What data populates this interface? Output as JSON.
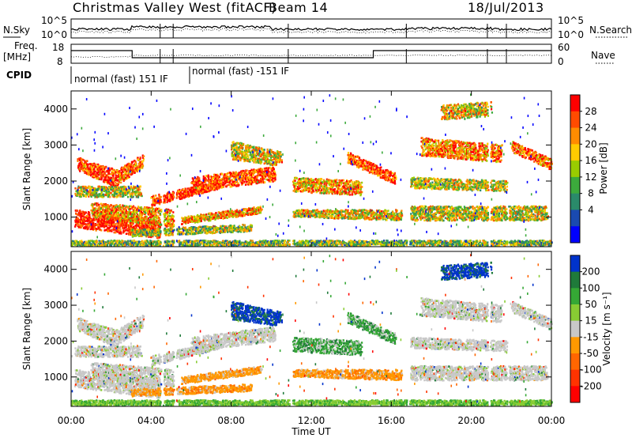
{
  "header": {
    "station": "Christmas Valley West (fitACF)",
    "beam": "Beam 14",
    "date": "18/Jul/2013"
  },
  "top_panels": {
    "nsky_label": "N.Sky",
    "nsky_ticks": [
      "10^5",
      "10^0"
    ],
    "nsearch_label": "N.Search",
    "nsearch_ticks": [
      "10^5",
      "10^0"
    ],
    "freq_label": "Freq.",
    "freq_units": "[MHz]",
    "freq_ticks": [
      "18",
      "8"
    ],
    "nave_label": "Nave",
    "nave_ticks": [
      "60",
      "0"
    ],
    "cpid_label": "CPID",
    "cpid_modes": [
      "normal (fast) 151 IF",
      "normal (fast) -151 IF"
    ]
  },
  "chart_data": [
    {
      "type": "heatmap",
      "title": "",
      "xlabel": "",
      "ylabel": "Slant Range [km]",
      "x_ticks": [
        "00:00",
        "04:00",
        "08:00",
        "12:00",
        "16:00",
        "20:00",
        "00:00"
      ],
      "xlim": [
        0,
        24
      ],
      "y_ticks": [
        1000,
        2000,
        3000,
        4000
      ],
      "ylim": [
        180,
        4500
      ],
      "colorbar": {
        "label": "Power [dB]",
        "ticks": [
          "28",
          "24",
          "20",
          "16",
          "12",
          "8",
          "4"
        ],
        "colors": [
          "#ff0000",
          "#ff4b00",
          "#ff8c00",
          "#ffcc00",
          "#99cc00",
          "#3caa3c",
          "#2a8a6a",
          "#1a4ab0",
          "#0000ff"
        ]
      }
    },
    {
      "type": "heatmap",
      "title": "",
      "xlabel": "Time UT",
      "ylabel": "Slant Range [km]",
      "x_ticks": [
        "00:00",
        "04:00",
        "08:00",
        "12:00",
        "16:00",
        "20:00",
        "00:00"
      ],
      "xlim": [
        0,
        24
      ],
      "y_ticks": [
        1000,
        2000,
        3000,
        4000
      ],
      "ylim": [
        180,
        4500
      ],
      "colorbar": {
        "label": "Velocity [m s⁻¹]",
        "ticks": [
          "200",
          "100",
          "50",
          "15",
          "-15",
          "-50",
          "-100",
          "-200"
        ],
        "colors": [
          "#0033cc",
          "#1f7a3a",
          "#35a835",
          "#88cc33",
          "#c8c8c8",
          "#ff9900",
          "#ff6600",
          "#ff3300",
          "#ff0000"
        ]
      }
    }
  ]
}
